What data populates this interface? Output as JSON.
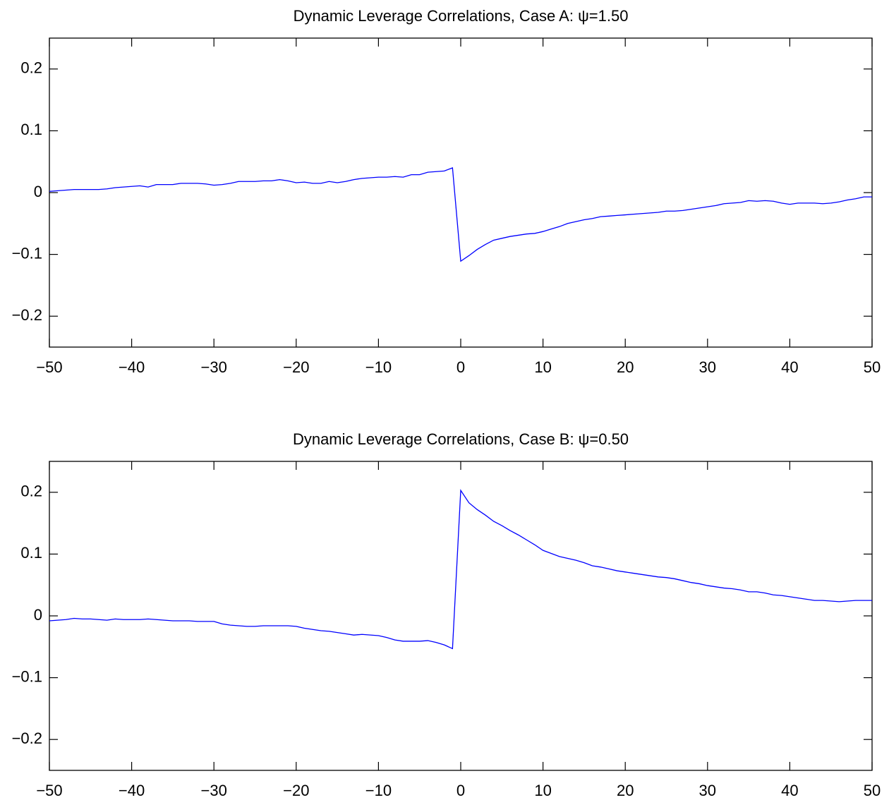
{
  "chart_data": [
    {
      "type": "line",
      "title": "Dynamic Leverage Correlations, Case A: ψ=1.50",
      "x": [
        -50,
        -49,
        -48,
        -47,
        -46,
        -45,
        -44,
        -43,
        -42,
        -41,
        -40,
        -39,
        -38,
        -37,
        -36,
        -35,
        -34,
        -33,
        -32,
        -31,
        -30,
        -29,
        -28,
        -27,
        -26,
        -25,
        -24,
        -23,
        -22,
        -21,
        -20,
        -19,
        -18,
        -17,
        -16,
        -15,
        -14,
        -13,
        -12,
        -11,
        -10,
        -9,
        -8,
        -7,
        -6,
        -5,
        -4,
        -3,
        -2,
        -1,
        0,
        1,
        2,
        3,
        4,
        5,
        6,
        7,
        8,
        9,
        10,
        11,
        12,
        13,
        14,
        15,
        16,
        17,
        18,
        19,
        20,
        21,
        22,
        23,
        24,
        25,
        26,
        27,
        28,
        29,
        30,
        31,
        32,
        33,
        34,
        35,
        36,
        37,
        38,
        39,
        40,
        41,
        42,
        43,
        44,
        45,
        46,
        47,
        48,
        49,
        50
      ],
      "series": [
        {
          "color": "#0000ff",
          "values": [
            0.002,
            0.003,
            0.004,
            0.005,
            0.005,
            0.005,
            0.005,
            0.006,
            0.008,
            0.009,
            0.01,
            0.011,
            0.009,
            0.013,
            0.013,
            0.013,
            0.015,
            0.015,
            0.015,
            0.014,
            0.012,
            0.013,
            0.015,
            0.018,
            0.018,
            0.018,
            0.019,
            0.019,
            0.021,
            0.019,
            0.016,
            0.017,
            0.015,
            0.015,
            0.018,
            0.016,
            0.018,
            0.021,
            0.023,
            0.024,
            0.025,
            0.025,
            0.026,
            0.025,
            0.029,
            0.029,
            0.033,
            0.034,
            0.035,
            0.04,
            -0.111,
            -0.102,
            -0.092,
            -0.084,
            -0.077,
            -0.074,
            -0.071,
            -0.069,
            -0.067,
            -0.066,
            -0.063,
            -0.059,
            -0.055,
            -0.05,
            -0.047,
            -0.044,
            -0.042,
            -0.039,
            -0.038,
            -0.037,
            -0.036,
            -0.035,
            -0.034,
            -0.033,
            -0.032,
            -0.03,
            -0.03,
            -0.029,
            -0.027,
            -0.025,
            -0.023,
            -0.021,
            -0.018,
            -0.017,
            -0.016,
            -0.013,
            -0.014,
            -0.013,
            -0.014,
            -0.017,
            -0.019,
            -0.017,
            -0.017,
            -0.017,
            -0.018,
            -0.017,
            -0.015,
            -0.012,
            -0.01,
            -0.007,
            -0.007
          ]
        }
      ],
      "xlim": [
        -50,
        50
      ],
      "xticks": [
        {
          "value": -50,
          "label": "−50"
        },
        {
          "value": -40,
          "label": "−40"
        },
        {
          "value": -30,
          "label": "−30"
        },
        {
          "value": -20,
          "label": "−20"
        },
        {
          "value": -10,
          "label": "−10"
        },
        0,
        10,
        20,
        30,
        40,
        50
      ],
      "ylim": [
        -0.25,
        0.25
      ],
      "yticks": [
        {
          "value": -0.2,
          "label": "−0.2"
        },
        {
          "value": -0.1,
          "label": "−0.1"
        },
        0,
        0.1,
        0.2
      ],
      "grid": false
    },
    {
      "type": "line",
      "title": "Dynamic Leverage Correlations, Case B: ψ=0.50",
      "x": [
        -50,
        -49,
        -48,
        -47,
        -46,
        -45,
        -44,
        -43,
        -42,
        -41,
        -40,
        -39,
        -38,
        -37,
        -36,
        -35,
        -34,
        -33,
        -32,
        -31,
        -30,
        -29,
        -28,
        -27,
        -26,
        -25,
        -24,
        -23,
        -22,
        -21,
        -20,
        -19,
        -18,
        -17,
        -16,
        -15,
        -14,
        -13,
        -12,
        -11,
        -10,
        -9,
        -8,
        -7,
        -6,
        -5,
        -4,
        -3,
        -2,
        -1,
        0,
        1,
        2,
        3,
        4,
        5,
        6,
        7,
        8,
        9,
        10,
        11,
        12,
        13,
        14,
        15,
        16,
        17,
        18,
        19,
        20,
        21,
        22,
        23,
        24,
        25,
        26,
        27,
        28,
        29,
        30,
        31,
        32,
        33,
        34,
        35,
        36,
        37,
        38,
        39,
        40,
        41,
        42,
        43,
        44,
        45,
        46,
        47,
        48,
        49,
        50
      ],
      "series": [
        {
          "color": "#0000ff",
          "values": [
            -0.008,
            -0.007,
            -0.006,
            -0.004,
            -0.005,
            -0.005,
            -0.006,
            -0.007,
            -0.005,
            -0.006,
            -0.006,
            -0.006,
            -0.005,
            -0.006,
            -0.007,
            -0.008,
            -0.008,
            -0.008,
            -0.009,
            -0.009,
            -0.009,
            -0.013,
            -0.015,
            -0.016,
            -0.017,
            -0.017,
            -0.016,
            -0.016,
            -0.016,
            -0.016,
            -0.017,
            -0.02,
            -0.022,
            -0.024,
            -0.025,
            -0.027,
            -0.029,
            -0.031,
            -0.03,
            -0.031,
            -0.032,
            -0.035,
            -0.039,
            -0.041,
            -0.041,
            -0.041,
            -0.04,
            -0.043,
            -0.047,
            -0.053,
            0.203,
            0.183,
            0.172,
            0.163,
            0.153,
            0.146,
            0.138,
            0.131,
            0.123,
            0.115,
            0.106,
            0.101,
            0.096,
            0.093,
            0.09,
            0.086,
            0.081,
            0.079,
            0.076,
            0.073,
            0.071,
            0.069,
            0.067,
            0.065,
            0.063,
            0.062,
            0.06,
            0.057,
            0.054,
            0.052,
            0.049,
            0.047,
            0.045,
            0.044,
            0.042,
            0.039,
            0.039,
            0.037,
            0.034,
            0.033,
            0.031,
            0.029,
            0.027,
            0.025,
            0.025,
            0.024,
            0.023,
            0.024,
            0.025,
            0.025,
            0.025
          ]
        }
      ],
      "xlim": [
        -50,
        50
      ],
      "xticks": [
        {
          "value": -50,
          "label": "−50"
        },
        {
          "value": -40,
          "label": "−40"
        },
        {
          "value": -30,
          "label": "−30"
        },
        {
          "value": -20,
          "label": "−20"
        },
        {
          "value": -10,
          "label": "−10"
        },
        0,
        10,
        20,
        30,
        40,
        50
      ],
      "ylim": [
        -0.25,
        0.25
      ],
      "yticks": [
        {
          "value": -0.2,
          "label": "−0.2"
        },
        {
          "value": -0.1,
          "label": "−0.1"
        },
        0,
        0.1,
        0.2
      ],
      "grid": false
    }
  ]
}
